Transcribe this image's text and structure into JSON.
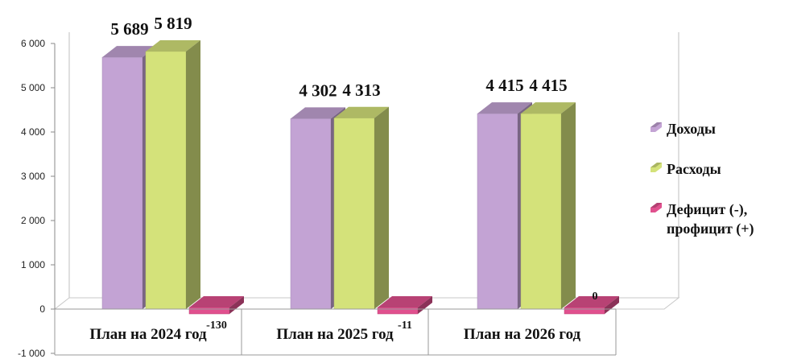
{
  "chart_data": {
    "type": "bar",
    "categories": [
      "План на 2024 год",
      "План на 2025 год",
      "План на 2026 год"
    ],
    "series": [
      {
        "name": "Доходы",
        "values": [
          5689,
          4302,
          4415
        ],
        "labels": [
          "5 689",
          "4 302",
          "4 415"
        ],
        "color": "#c3a3d4"
      },
      {
        "name": "Расходы",
        "values": [
          5819,
          4313,
          4415
        ],
        "labels": [
          "5 819",
          "4 313",
          "4 415"
        ],
        "color": "#d4e27a"
      },
      {
        "name_lines": [
          "Дефицит (-),",
          "профицит (+)"
        ],
        "values": [
          -130,
          -11,
          0
        ],
        "labels": [
          "-130",
          "-11",
          "0"
        ],
        "color": "#e0508e"
      }
    ],
    "ylim": [
      -1000,
      6000
    ],
    "yticks": [
      -1000,
      0,
      1000,
      2000,
      3000,
      4000,
      5000,
      6000
    ],
    "ytick_labels": [
      "-1 000",
      "0",
      "1 000",
      "2 000",
      "3 000",
      "4 000",
      "5 000",
      "6 000"
    ],
    "grid": false,
    "legend_position": "right"
  }
}
